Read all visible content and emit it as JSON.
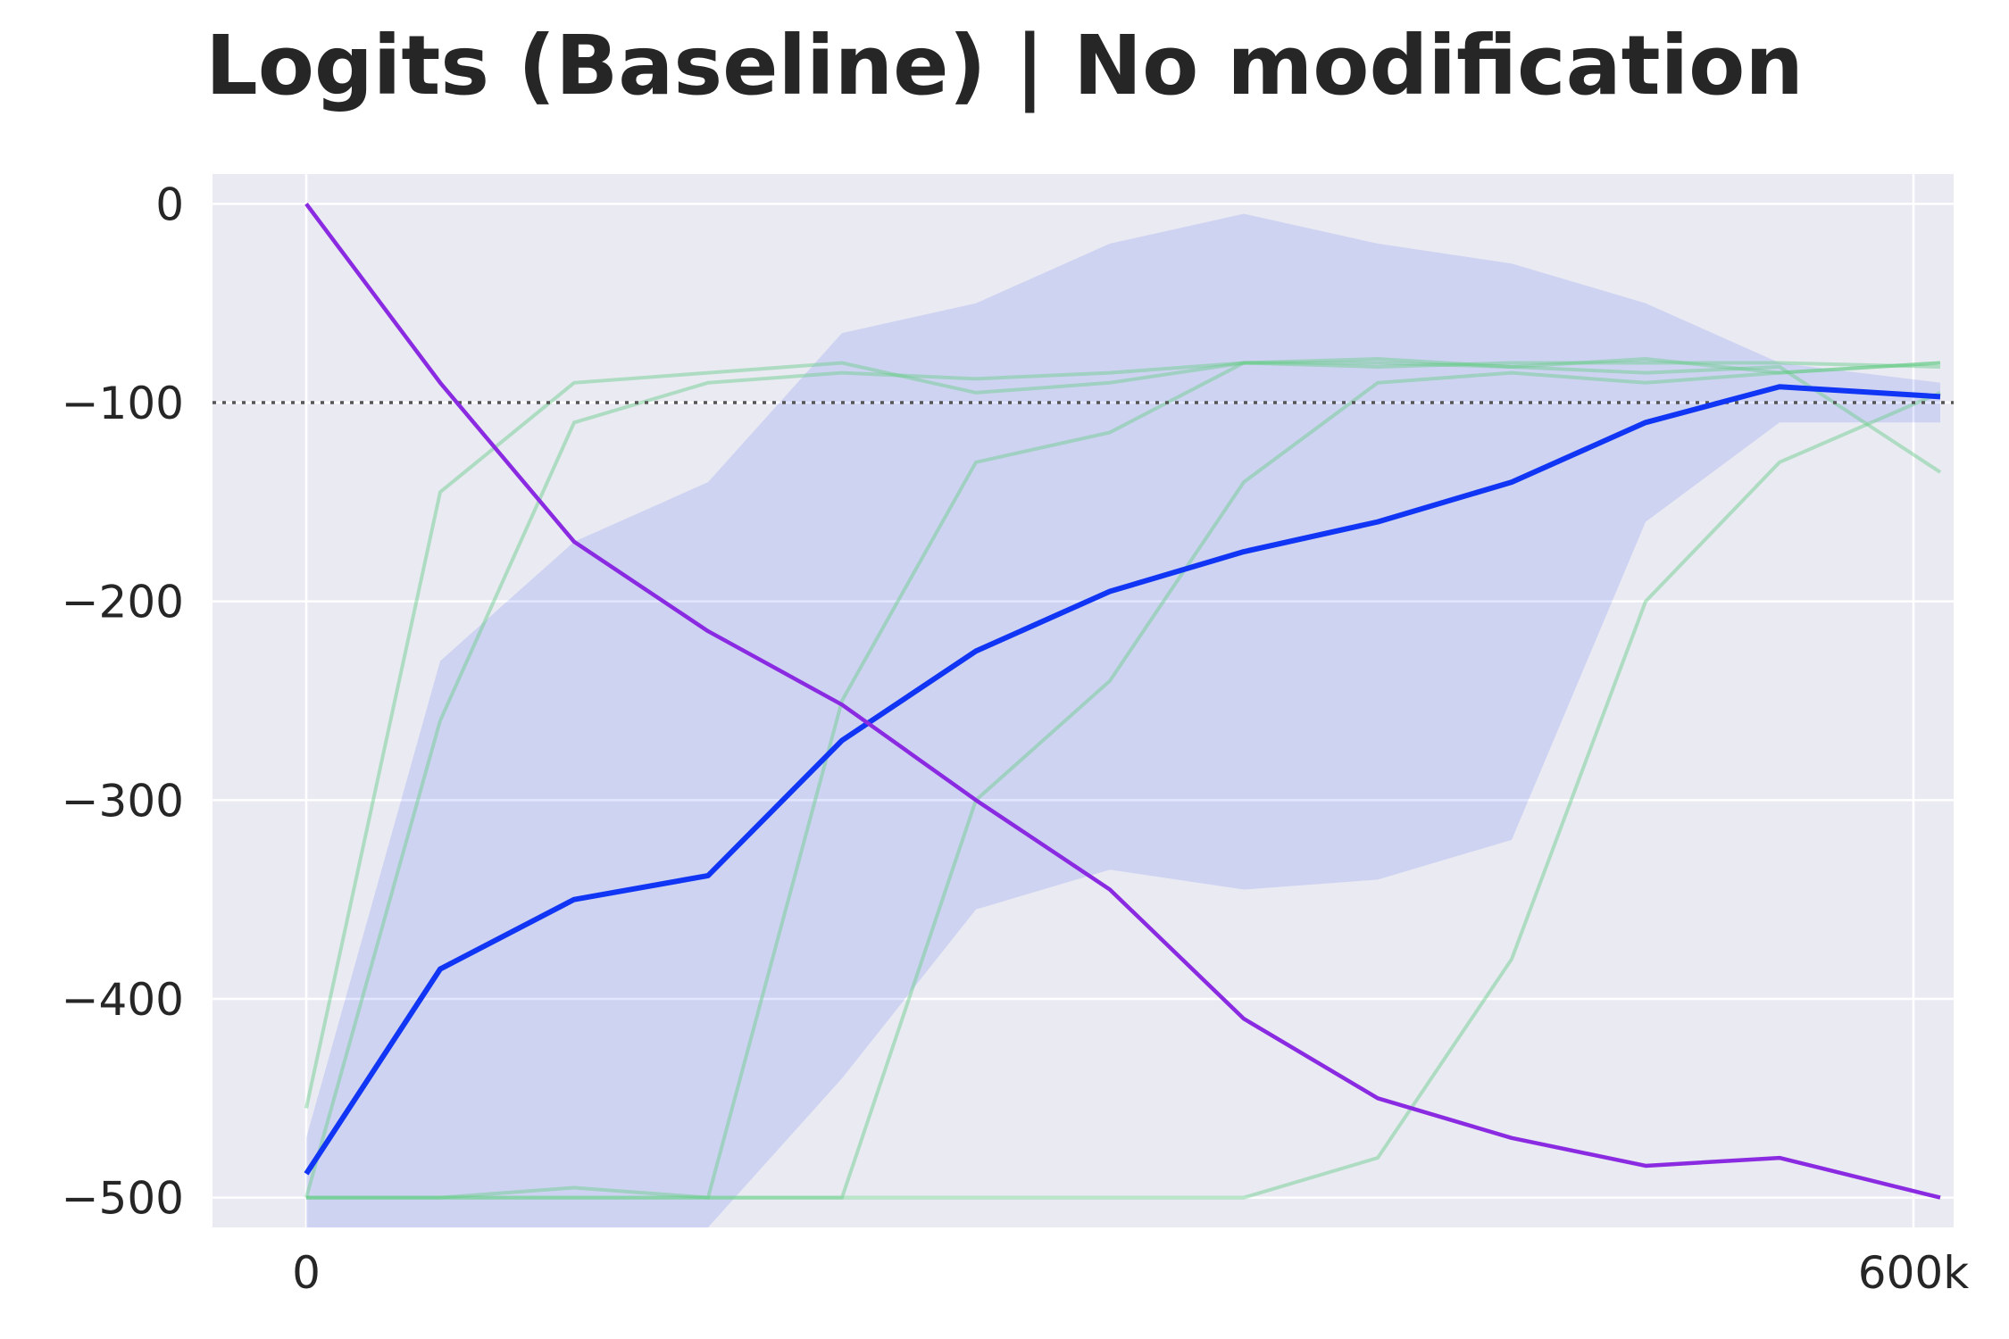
{
  "chart_data": {
    "type": "line",
    "title": "Logits (Baseline) | No modification",
    "xlabel": "",
    "ylabel": "",
    "xlim": [
      -35000,
      615000
    ],
    "ylim": [
      -515,
      15
    ],
    "x_ticks": [
      0,
      600000
    ],
    "x_tick_labels": [
      "0",
      "600k"
    ],
    "y_ticks": [
      0,
      -100,
      -200,
      -300,
      -400,
      -500
    ],
    "y_tick_labels": [
      "0",
      "−100",
      "−200",
      "−300",
      "−400",
      "−500"
    ],
    "grid": true,
    "reference_line": {
      "y": -100,
      "style": "dotted"
    },
    "x": [
      0,
      50000,
      100000,
      150000,
      200000,
      250000,
      300000,
      350000,
      400000,
      450000,
      500000,
      550000,
      610000
    ],
    "series": [
      {
        "color": "#1035f5",
        "values": [
          -488,
          -385,
          -350,
          -338,
          -270,
          -225,
          -195,
          -175,
          -160,
          -140,
          -110,
          -92,
          -97
        ],
        "band_upper": [
          -470,
          -230,
          -170,
          -140,
          -65,
          -50,
          -20,
          -5,
          -20,
          -30,
          -50,
          -80,
          -90
        ],
        "band_lower": [
          -520,
          -520,
          -520,
          -520,
          -440,
          -355,
          -335,
          -345,
          -340,
          -320,
          -160,
          -110,
          -110
        ]
      },
      {
        "color": "#8a2be2",
        "values": [
          0,
          -90,
          -170,
          -215,
          -252,
          -300,
          -345,
          -410,
          -450,
          -470,
          -484,
          -480,
          -500
        ]
      }
    ],
    "individual_runs": [
      {
        "color": "#66cc88",
        "values": [
          -455,
          -145,
          -90,
          -85,
          -80,
          -95,
          -90,
          -80,
          -82,
          -80,
          -80,
          -80,
          -82
        ]
      },
      {
        "color": "#66cc88",
        "values": [
          -500,
          -260,
          -110,
          -90,
          -85,
          -88,
          -85,
          -80,
          -78,
          -82,
          -85,
          -82,
          -135
        ]
      },
      {
        "color": "#66cc88",
        "values": [
          -500,
          -500,
          -495,
          -500,
          -250,
          -130,
          -115,
          -80,
          -80,
          -82,
          -78,
          -85,
          -80
        ]
      },
      {
        "color": "#66cc88",
        "values": [
          -500,
          -500,
          -500,
          -500,
          -500,
          -300,
          -240,
          -140,
          -90,
          -85,
          -90,
          -85,
          -80
        ]
      },
      {
        "color": "#66cc88",
        "values": [
          -500,
          -500,
          -500,
          -500,
          -500,
          -500,
          -500,
          -500,
          -480,
          -380,
          -200,
          -130,
          -95
        ]
      }
    ]
  }
}
